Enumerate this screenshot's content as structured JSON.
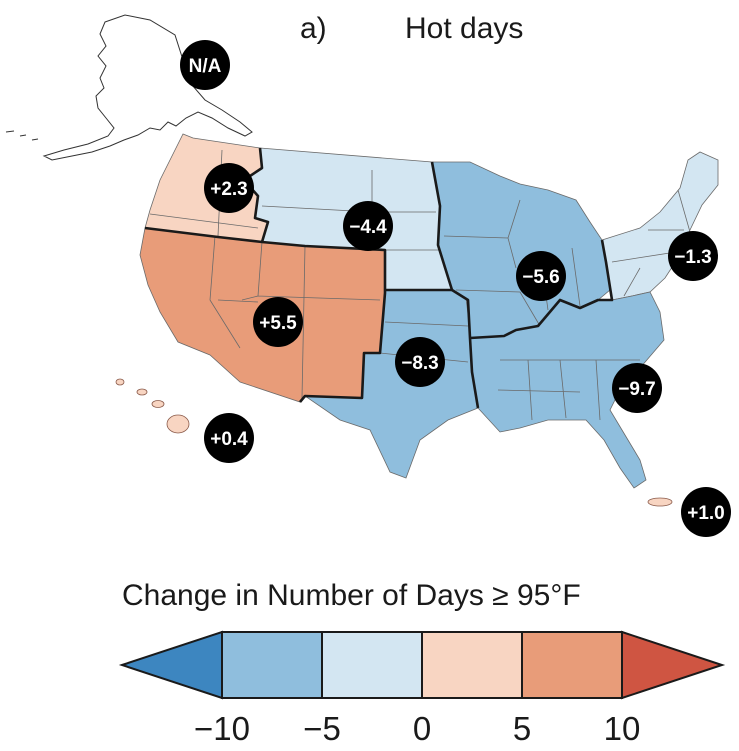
{
  "title": {
    "panel": "a)",
    "text": "Hot days"
  },
  "colors": {
    "le_neg10": "#3d86c0",
    "neg10_neg5": "#8fbedd",
    "neg5_0": "#d3e6f2",
    "0_5": "#f8d5c2",
    "5_10": "#e89c79",
    "ge_10": "#cf5542",
    "badge": "#000000",
    "border": "#1a1a1a"
  },
  "regions": [
    {
      "id": "alaska",
      "label": "N/A",
      "fill": "none"
    },
    {
      "id": "northwest",
      "label": "+2.3",
      "fill": "0_5"
    },
    {
      "id": "northern_great_plains",
      "label": "−4.4",
      "fill": "neg5_0"
    },
    {
      "id": "southwest",
      "label": "+5.5",
      "fill": "5_10"
    },
    {
      "id": "southern_great_plains",
      "label": "−8.3",
      "fill": "neg10_neg5"
    },
    {
      "id": "midwest",
      "label": "−5.6",
      "fill": "neg10_neg5"
    },
    {
      "id": "northeast",
      "label": "−1.3",
      "fill": "neg5_0"
    },
    {
      "id": "southeast",
      "label": "−9.7",
      "fill": "neg10_neg5"
    },
    {
      "id": "hawaii",
      "label": "+0.4",
      "fill": "0_5"
    },
    {
      "id": "caribbean",
      "label": "+1.0",
      "fill": "0_5"
    }
  ],
  "legend": {
    "title": "Change in Number of Days ≥ 95°F",
    "ticks": [
      "−10",
      "−5",
      "0",
      "5",
      "10"
    ]
  }
}
